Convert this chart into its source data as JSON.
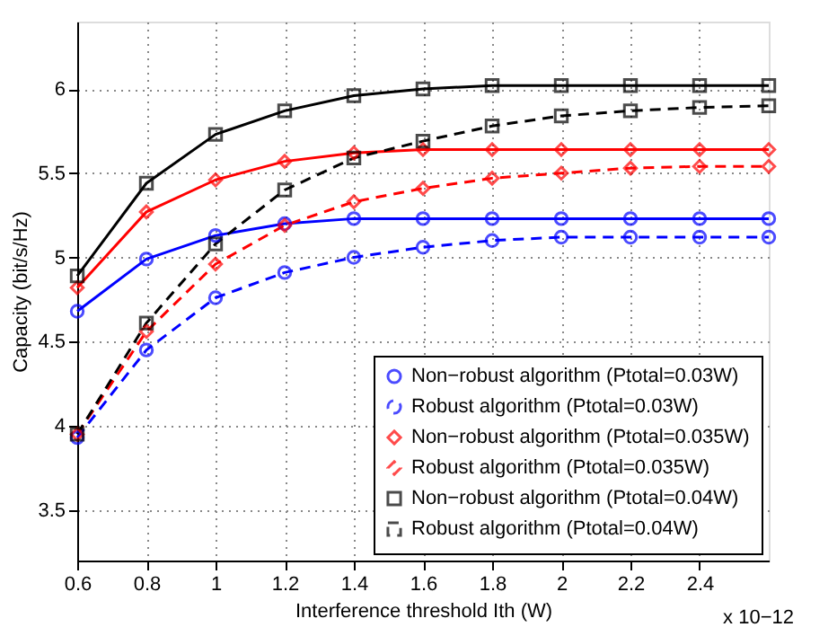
{
  "chart_data": {
    "type": "line",
    "xlabel": "Interference threshold Ith (W)",
    "ylabel": "Capacity (bit/s/Hz)",
    "annotations": [
      "x 10−12"
    ],
    "x": [
      0.6,
      0.8,
      1.0,
      1.2,
      1.4,
      1.6,
      1.8,
      2.0,
      2.2,
      2.4,
      2.6
    ],
    "xlim": [
      0.6,
      2.6
    ],
    "xticks": [
      0.6,
      0.8,
      1,
      1.2,
      1.4,
      1.6,
      1.8,
      2,
      2.2,
      2.4
    ],
    "ylim": [
      3.2,
      6.4
    ],
    "yticks": [
      3.5,
      4,
      4.5,
      5,
      5.5,
      6
    ],
    "grid": true,
    "legend": "bottom right",
    "series": [
      {
        "name": "Non−robust algorithm (Ptotal=0.03W)",
        "color": "#0000ff",
        "marker": "circle",
        "line_style": "solid",
        "values": [
          4.68,
          4.99,
          5.13,
          5.2,
          5.23,
          5.23,
          5.23,
          5.23,
          5.23,
          5.23,
          5.23
        ]
      },
      {
        "name": "Robust algorithm (Ptotal=0.03W)",
        "color": "#0000ff",
        "marker": "circle",
        "line_style": "dashed",
        "values": [
          3.93,
          4.45,
          4.76,
          4.91,
          5.0,
          5.06,
          5.1,
          5.12,
          5.12,
          5.12,
          5.12
        ]
      },
      {
        "name": "Non−robust algorithm (Ptotal=0.035W)",
        "color": "#ff0000",
        "marker": "diamond",
        "line_style": "solid",
        "values": [
          4.82,
          5.27,
          5.46,
          5.57,
          5.62,
          5.64,
          5.64,
          5.64,
          5.64,
          5.64,
          5.64
        ]
      },
      {
        "name": "Robust algorithm (Ptotal=0.035W)",
        "color": "#ff0000",
        "marker": "diamond",
        "line_style": "dashed",
        "values": [
          3.95,
          4.56,
          4.96,
          5.19,
          5.33,
          5.41,
          5.47,
          5.5,
          5.53,
          5.54,
          5.54
        ]
      },
      {
        "name": "Non−robust algorithm (Ptotal=0.04W)",
        "color": "#000000",
        "marker": "square",
        "line_style": "solid",
        "values": [
          4.89,
          5.44,
          5.73,
          5.87,
          5.96,
          6.0,
          6.02,
          6.02,
          6.02,
          6.02,
          6.02
        ]
      },
      {
        "name": "Robust algorithm (Ptotal=0.04W)",
        "color": "#000000",
        "marker": "square",
        "line_style": "dashed",
        "values": [
          3.95,
          4.61,
          5.08,
          5.4,
          5.59,
          5.69,
          5.78,
          5.84,
          5.87,
          5.89,
          5.9
        ]
      }
    ]
  }
}
